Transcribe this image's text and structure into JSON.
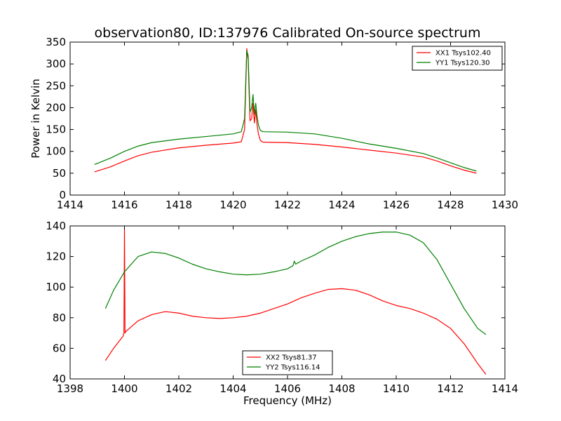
{
  "title": "observation80, ID:137976 Calibrated On-source spectrum",
  "chart_data": [
    {
      "type": "line",
      "title": "observation80, ID:137976 Calibrated On-source spectrum",
      "xlabel": "",
      "ylabel": "Power in Kelvin",
      "xlim": [
        1414,
        1430
      ],
      "ylim": [
        0,
        350
      ],
      "xticks": [
        1414,
        1416,
        1418,
        1420,
        1422,
        1424,
        1426,
        1428,
        1430
      ],
      "yticks": [
        0,
        50,
        100,
        150,
        200,
        250,
        300,
        350
      ],
      "grid": false,
      "legend": "top-right",
      "series": [
        {
          "name": "XX1 Tsys102.40",
          "color": "#ff0000",
          "x": [
            1414.9,
            1415.5,
            1416.0,
            1416.5,
            1417.0,
            1418.0,
            1419.0,
            1420.0,
            1420.3,
            1420.42,
            1420.5,
            1420.55,
            1420.62,
            1420.68,
            1420.73,
            1420.78,
            1420.83,
            1420.88,
            1420.93,
            1421.0,
            1421.1,
            1422.0,
            1423.0,
            1424.0,
            1425.0,
            1426.0,
            1427.0,
            1427.5,
            1428.0,
            1428.5,
            1428.95
          ],
          "y": [
            53,
            65,
            78,
            90,
            98,
            108,
            114,
            119,
            122,
            150,
            335,
            310,
            170,
            175,
            210,
            165,
            195,
            160,
            140,
            125,
            121,
            120,
            116,
            110,
            103,
            96,
            87,
            78,
            67,
            57,
            50
          ]
        },
        {
          "name": "YY1 Tsys120.30",
          "color": "#008000",
          "x": [
            1414.9,
            1415.5,
            1416.0,
            1416.5,
            1417.0,
            1418.0,
            1419.0,
            1420.0,
            1420.3,
            1420.42,
            1420.5,
            1420.55,
            1420.62,
            1420.68,
            1420.73,
            1420.78,
            1420.83,
            1420.88,
            1420.93,
            1421.0,
            1421.1,
            1422.0,
            1423.0,
            1424.0,
            1425.0,
            1426.0,
            1427.0,
            1427.5,
            1428.0,
            1428.5,
            1428.95
          ],
          "y": [
            70,
            85,
            100,
            112,
            120,
            128,
            134,
            140,
            145,
            175,
            330,
            320,
            190,
            200,
            230,
            185,
            210,
            180,
            160,
            148,
            145,
            144,
            140,
            130,
            117,
            107,
            95,
            85,
            74,
            63,
            55
          ]
        }
      ]
    },
    {
      "type": "line",
      "title": "",
      "xlabel": "Frequency (MHz)",
      "ylabel": "",
      "xlim": [
        1398,
        1414
      ],
      "ylim": [
        40,
        140
      ],
      "xticks": [
        1398,
        1400,
        1402,
        1404,
        1406,
        1408,
        1410,
        1412,
        1414
      ],
      "yticks": [
        40,
        60,
        80,
        100,
        120,
        140
      ],
      "grid": false,
      "legend": "bottom-center",
      "series": [
        {
          "name": "XX2 Tsys81.37",
          "color": "#ff0000",
          "x": [
            1399.3,
            1399.6,
            1399.95,
            1399.98,
            1400.0,
            1400.02,
            1400.05,
            1400.5,
            1401.0,
            1401.5,
            1402.0,
            1402.5,
            1403.0,
            1403.5,
            1404.0,
            1404.5,
            1405.0,
            1405.5,
            1406.0,
            1406.5,
            1407.0,
            1407.5,
            1408.0,
            1408.5,
            1409.0,
            1409.5,
            1410.0,
            1410.5,
            1411.0,
            1411.5,
            1412.0,
            1412.5,
            1413.0,
            1413.3
          ],
          "y": [
            52,
            60,
            68,
            70,
            138,
            70,
            71,
            78,
            82,
            84,
            83,
            81,
            80,
            79.5,
            80,
            81,
            83,
            86,
            89,
            93,
            96,
            98.5,
            99,
            98,
            95,
            91,
            88,
            86,
            83,
            79,
            73,
            63,
            50,
            43
          ]
        },
        {
          "name": "YY2 Tsys116.14",
          "color": "#008000",
          "x": [
            1399.3,
            1399.6,
            1400.0,
            1400.5,
            1401.0,
            1401.5,
            1402.0,
            1402.5,
            1403.0,
            1403.5,
            1404.0,
            1404.5,
            1405.0,
            1405.5,
            1406.0,
            1406.2,
            1406.25,
            1406.3,
            1406.5,
            1407.0,
            1407.5,
            1408.0,
            1408.5,
            1409.0,
            1409.5,
            1410.0,
            1410.5,
            1411.0,
            1411.5,
            1412.0,
            1412.5,
            1413.0,
            1413.3
          ],
          "y": [
            86,
            98,
            110,
            120,
            123,
            122,
            119,
            115,
            112,
            110,
            108.5,
            108,
            108.5,
            110,
            112,
            114,
            117,
            115,
            117,
            121,
            126,
            130,
            133,
            135,
            136,
            136,
            134,
            129,
            118,
            102,
            86,
            73,
            69
          ]
        }
      ]
    }
  ]
}
